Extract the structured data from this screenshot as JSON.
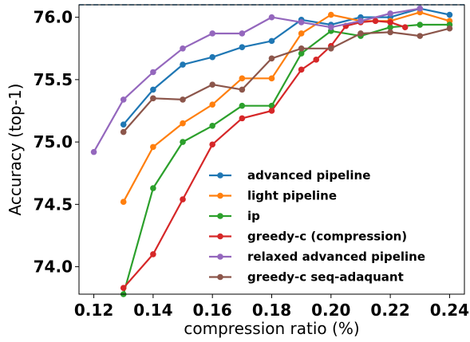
{
  "chart_data": {
    "type": "line",
    "xlabel": "compression ratio (%)",
    "ylabel": "Accuracy (top-1)",
    "xlim": [
      0.115,
      0.245
    ],
    "ylim": [
      73.78,
      76.1
    ],
    "xticks": [
      0.12,
      0.14,
      0.16,
      0.18,
      0.2,
      0.22,
      0.24
    ],
    "xtick_labels": [
      "0.12",
      "0.14",
      "0.16",
      "0.18",
      "0.20",
      "0.22",
      "0.24"
    ],
    "yticks": [
      74.0,
      74.5,
      75.0,
      75.5,
      76.0
    ],
    "ytick_labels": [
      "74.0",
      "74.5",
      "75.0",
      "75.5",
      "76.0"
    ],
    "grid": false,
    "legend_position": "lower-right",
    "reference_line": {
      "y": 76.1,
      "style": "dashed",
      "color": "#1f77b4"
    },
    "series": [
      {
        "name": "advanced pipeline",
        "color": "#1f77b4",
        "x": [
          0.13,
          0.14,
          0.15,
          0.16,
          0.17,
          0.18,
          0.19,
          0.2,
          0.21,
          0.22,
          0.23,
          0.24
        ],
        "y": [
          75.14,
          75.42,
          75.62,
          75.68,
          75.76,
          75.81,
          75.98,
          75.94,
          76.0,
          76.0,
          76.07,
          76.02
        ]
      },
      {
        "name": "light pipeline",
        "color": "#ff7f0e",
        "x": [
          0.13,
          0.14,
          0.15,
          0.16,
          0.17,
          0.18,
          0.19,
          0.2,
          0.21,
          0.22,
          0.23,
          0.24
        ],
        "y": [
          74.52,
          74.96,
          75.15,
          75.3,
          75.51,
          75.51,
          75.87,
          76.02,
          75.97,
          75.97,
          76.04,
          75.97
        ]
      },
      {
        "name": "ip",
        "color": "#2ca02c",
        "x": [
          0.13,
          0.14,
          0.15,
          0.16,
          0.17,
          0.18,
          0.19,
          0.2,
          0.21,
          0.22,
          0.23,
          0.24
        ],
        "y": [
          73.78,
          74.63,
          75.0,
          75.13,
          75.29,
          75.29,
          75.71,
          75.89,
          75.85,
          75.92,
          75.94,
          75.94
        ]
      },
      {
        "name": "greedy-c (compression)",
        "color": "#d62728",
        "x": [
          0.13,
          0.14,
          0.15,
          0.16,
          0.17,
          0.18,
          0.19,
          0.195,
          0.2,
          0.205,
          0.21,
          0.215,
          0.22,
          0.225
        ],
        "y": [
          73.83,
          74.1,
          74.54,
          74.98,
          75.19,
          75.25,
          75.58,
          75.66,
          75.77,
          75.93,
          75.96,
          75.97,
          75.96,
          75.92
        ]
      },
      {
        "name": "relaxed advanced pipeline",
        "color": "#9467bd",
        "x": [
          0.12,
          0.13,
          0.14,
          0.15,
          0.16,
          0.17,
          0.18,
          0.19,
          0.2,
          0.21,
          0.22,
          0.23
        ],
        "y": [
          74.92,
          75.34,
          75.56,
          75.75,
          75.87,
          75.87,
          76.0,
          75.96,
          75.92,
          75.97,
          76.03,
          76.07
        ]
      },
      {
        "name": "greedy-c seq-adaquant",
        "color": "#8c564b",
        "x": [
          0.13,
          0.14,
          0.15,
          0.16,
          0.17,
          0.18,
          0.19,
          0.2,
          0.21,
          0.22,
          0.23,
          0.24
        ],
        "y": [
          75.08,
          75.35,
          75.34,
          75.46,
          75.42,
          75.67,
          75.75,
          75.75,
          75.87,
          75.88,
          75.85,
          75.91
        ]
      }
    ]
  }
}
